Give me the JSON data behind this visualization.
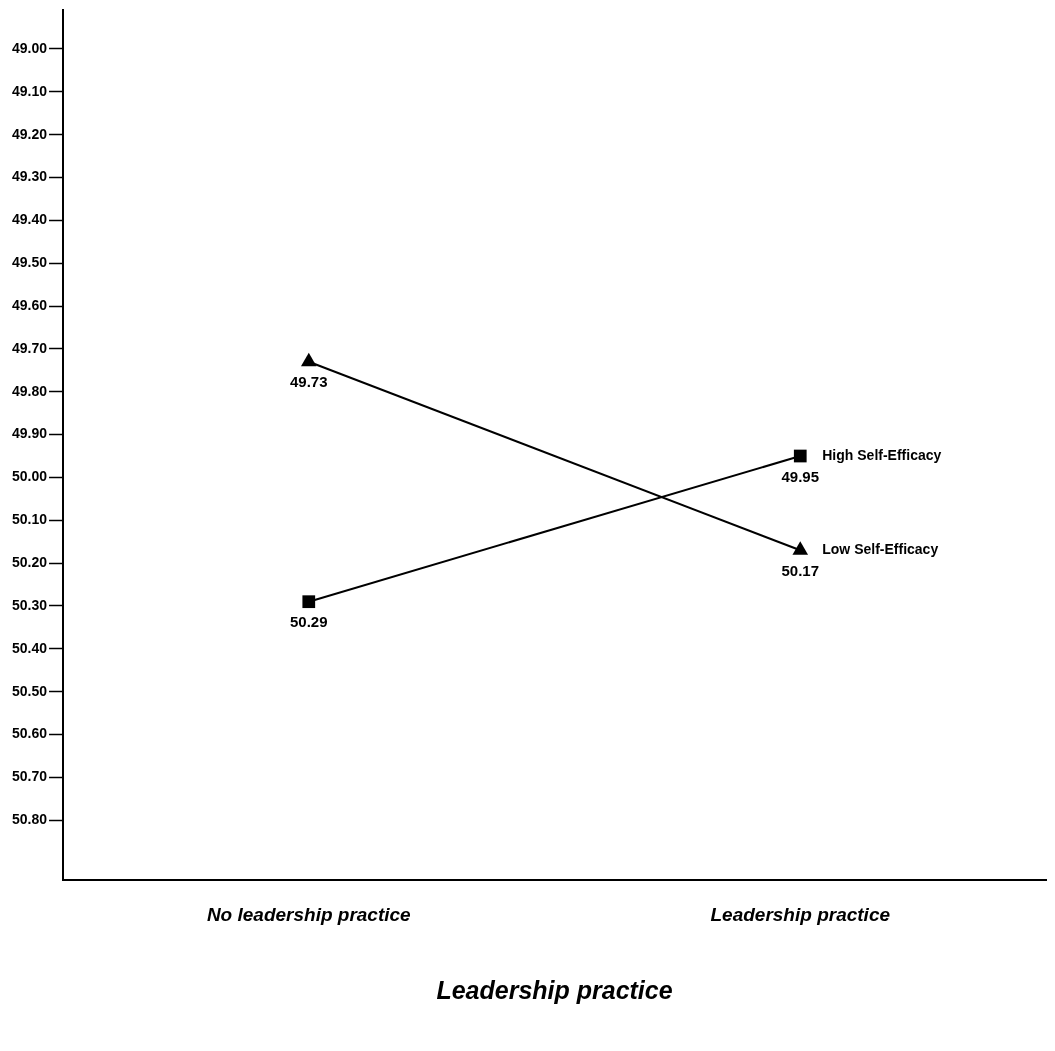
{
  "chart_data": {
    "type": "line",
    "xlabel": "Leadership practice",
    "categories": [
      "No leadership practice",
      "Leadership practice"
    ],
    "series": [
      {
        "name": "High Self-Efficacy",
        "color": "#000000",
        "marker": "square",
        "values": [
          50.29,
          49.95
        ]
      },
      {
        "name": "Low Self-Efficacy",
        "color": "#000000",
        "marker": "triangle",
        "values": [
          49.73,
          50.17
        ]
      }
    ],
    "ylim": [
      50.94,
      48.91
    ],
    "yticks": [
      {
        "value": 49.0,
        "label": "49.00"
      },
      {
        "value": 49.1,
        "label": "49.10"
      },
      {
        "value": 49.2,
        "label": "49.20"
      },
      {
        "value": 49.3,
        "label": "49.30"
      },
      {
        "value": 49.4,
        "label": "49.40"
      },
      {
        "value": 49.5,
        "label": "49.50"
      },
      {
        "value": 49.6,
        "label": "49.60"
      },
      {
        "value": 49.7,
        "label": "49.70"
      },
      {
        "value": 49.8,
        "label": "49.80"
      },
      {
        "value": 49.9,
        "label": "49.90"
      },
      {
        "value": 50.0,
        "label": "50.00"
      },
      {
        "value": 50.1,
        "label": "50.10"
      },
      {
        "value": 50.2,
        "label": "50.20"
      },
      {
        "value": 50.3,
        "label": "50.30"
      },
      {
        "value": 50.4,
        "label": "50.40"
      },
      {
        "value": 50.5,
        "label": "50.50"
      },
      {
        "value": 50.6,
        "label": "50.60"
      },
      {
        "value": 50.7,
        "label": "50.70"
      },
      {
        "value": 50.8,
        "label": "50.80"
      }
    ],
    "data_labels": true,
    "grid": false,
    "legend": false,
    "line_style": "solid"
  }
}
